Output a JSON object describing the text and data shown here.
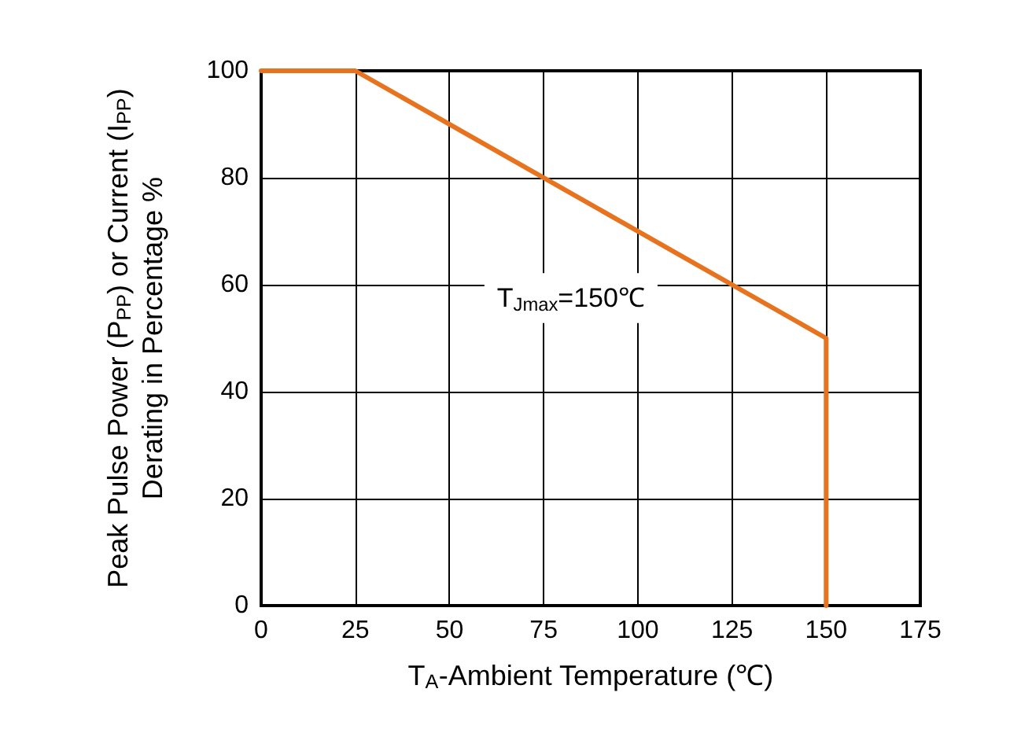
{
  "chart_data": {
    "type": "line",
    "xlabel": "T$_{A}$-Ambient Temperature (℃)",
    "ylabel": "Peak Pulse Power (P$_{PP}$) or Current (I$_{PP}$)\nDerating in Percentage %",
    "annotations": [
      "T$_{Jmax}$=150℃"
    ],
    "series": [
      {
        "color": "#e8731f",
        "x": [
          0,
          25,
          150,
          150
        ],
        "values": [
          100,
          100,
          50,
          0
        ]
      }
    ],
    "xlim": [
      0,
      175
    ],
    "xticks": [
      0,
      25,
      50,
      75,
      100,
      125,
      150,
      175
    ],
    "ylim": [
      0,
      100
    ],
    "yticks": [
      0,
      20,
      40,
      60,
      80,
      100
    ],
    "grid": true,
    "marker": "none",
    "line_style": "solid"
  }
}
